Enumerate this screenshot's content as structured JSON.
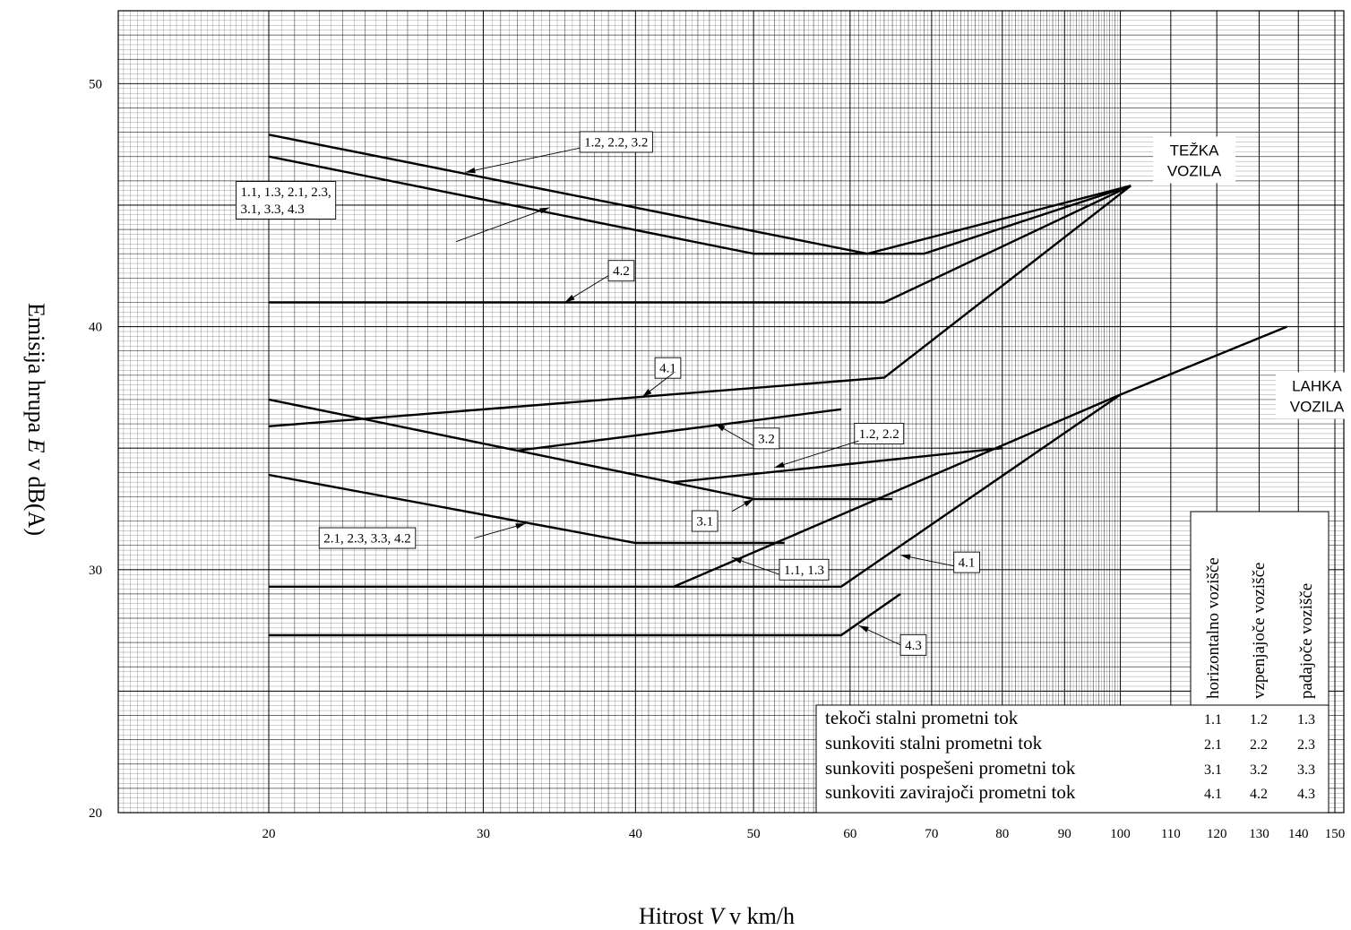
{
  "chart_data": {
    "type": "line",
    "xlabel_prefix": "Hitrost ",
    "xlabel_var": "V",
    "xlabel_suffix": " v km/h",
    "ylabel_prefix": "Emisija hrupa ",
    "ylabel_var": "E",
    "ylabel_suffix": " v dB(A)",
    "x_scale": "log",
    "xlim": [
      14,
      150
    ],
    "ylim": [
      20,
      53
    ],
    "x_ticks": [
      20,
      30,
      40,
      50,
      60,
      70,
      80,
      90,
      100,
      110,
      120,
      130,
      140,
      150
    ],
    "x_tick_labels": [
      "20",
      "30",
      "40",
      "50",
      "60",
      "70",
      "80",
      "90",
      "100",
      "110",
      "120",
      "130",
      "140",
      "150"
    ],
    "y_ticks": [
      20,
      30,
      40,
      50
    ],
    "y_tick_labels": [
      "20",
      "30",
      "40",
      "50"
    ],
    "grid": true,
    "regions": [
      {
        "line1": "TEŽKA",
        "line2": "VOZILA",
        "x": 115,
        "y": 46.9
      },
      {
        "line1": "LAHKA",
        "line2": "VOZILA",
        "x": 145,
        "y": 37.2
      }
    ],
    "series": [
      {
        "group": "heavy",
        "points": [
          [
            20,
            47.9
          ],
          [
            62,
            43.0
          ],
          [
            69,
            43.0
          ],
          [
            102,
            45.8
          ]
        ]
      },
      {
        "group": "heavy",
        "points": [
          [
            20,
            47.0
          ],
          [
            50,
            43.0
          ],
          [
            62,
            43.0
          ],
          [
            102,
            45.8
          ]
        ]
      },
      {
        "group": "heavy",
        "points": [
          [
            20,
            41.0
          ],
          [
            64,
            41.0
          ],
          [
            102,
            45.8
          ]
        ]
      },
      {
        "group": "heavy",
        "points": [
          [
            20,
            35.9
          ],
          [
            64,
            37.9
          ],
          [
            102,
            45.8
          ]
        ]
      },
      {
        "group": "heavy",
        "points": [
          [
            32,
            34.9
          ],
          [
            59,
            36.6
          ]
        ]
      },
      {
        "group": "light",
        "points": [
          [
            20,
            37.0
          ],
          [
            50,
            32.9
          ],
          [
            65,
            32.9
          ]
        ]
      },
      {
        "group": "light",
        "points": [
          [
            43,
            33.6
          ],
          [
            80,
            35.0
          ]
        ]
      },
      {
        "group": "light",
        "points": [
          [
            20,
            33.9
          ],
          [
            40,
            31.1
          ],
          [
            53,
            31.1
          ]
        ]
      },
      {
        "group": "light",
        "points": [
          [
            43,
            29.3
          ],
          [
            100,
            37.2
          ],
          [
            137,
            40.0
          ]
        ]
      },
      {
        "group": "light",
        "points": [
          [
            20,
            29.3
          ],
          [
            59,
            29.3
          ],
          [
            100,
            37.2
          ]
        ]
      },
      {
        "group": "light",
        "points": [
          [
            20,
            27.3
          ],
          [
            59,
            27.3
          ],
          [
            66,
            29.0
          ]
        ]
      }
    ],
    "annotations": [
      {
        "lines": [
          "1.2, 2.2, 3.2"
        ],
        "box": [
          36,
          47.6
        ],
        "anchor": "lm",
        "arrow_from": [
          36,
          47.35
        ],
        "arrow_to": [
          29,
          46.35
        ]
      },
      {
        "lines": [
          "1.1, 1.3, 2.1, 2.3,",
          "3.1, 3.3, 4.3"
        ],
        "box": [
          18.8,
          45.2
        ],
        "anchor": "lm",
        "arrow_from": [
          28.5,
          43.5
        ],
        "arrow_to": [
          34,
          44.9
        ]
      },
      {
        "lines": [
          "4.2"
        ],
        "box": [
          38,
          42.3
        ],
        "anchor": "lm",
        "arrow_from": [
          38,
          42.1
        ],
        "arrow_to": [
          35,
          41.0
        ]
      },
      {
        "lines": [
          "4.1"
        ],
        "box": [
          41.5,
          38.3
        ],
        "anchor": "lm",
        "arrow_from": [
          43,
          38.1
        ],
        "arrow_to": [
          40.5,
          37.1
        ]
      },
      {
        "lines": [
          "3.2"
        ],
        "box": [
          50,
          35.4
        ],
        "anchor": "lm",
        "arrow_from": [
          50,
          35.1
        ],
        "arrow_to": [
          46.5,
          36.0
        ]
      },
      {
        "lines": [
          "1.2, 2.2"
        ],
        "box": [
          60.5,
          35.6
        ],
        "anchor": "lm",
        "arrow_from": [
          61,
          35.3
        ],
        "arrow_to": [
          52,
          34.2
        ]
      },
      {
        "lines": [
          "3.1"
        ],
        "box": [
          44.5,
          32.0
        ],
        "anchor": "lm",
        "arrow_from": [
          48,
          32.4
        ],
        "arrow_to": [
          50,
          32.9
        ]
      },
      {
        "lines": [
          "2.1, 2.3, 3.3, 4.2"
        ],
        "box": [
          22,
          31.3
        ],
        "anchor": "lm",
        "arrow_from": [
          29.5,
          31.3
        ],
        "arrow_to": [
          32.5,
          31.9
        ]
      },
      {
        "lines": [
          "1.1, 1.3"
        ],
        "box": [
          52.5,
          30.0
        ],
        "anchor": "lm",
        "arrow_from": [
          52.5,
          29.8
        ],
        "arrow_to": [
          48,
          30.5
        ]
      },
      {
        "lines": [
          "4.1"
        ],
        "box": [
          73,
          30.3
        ],
        "anchor": "lm",
        "arrow_from": [
          73,
          30.15
        ],
        "arrow_to": [
          66,
          30.6
        ]
      },
      {
        "lines": [
          "4.3"
        ],
        "box": [
          66,
          26.9
        ],
        "anchor": "lm",
        "arrow_from": [
          66,
          26.9
        ],
        "arrow_to": [
          61,
          27.7
        ]
      }
    ]
  },
  "legend": {
    "column_headers": [
      "horizontalno vozišče",
      "vzpenjajoče vozišče",
      "padajoče vozišče"
    ],
    "rows": [
      {
        "label": "tekoči stalni prometni tok",
        "codes": [
          "1.1",
          "1.2",
          "1.3"
        ]
      },
      {
        "label": "sunkoviti stalni prometni tok",
        "codes": [
          "2.1",
          "2.2",
          "2.3"
        ]
      },
      {
        "label": "sunkoviti pospešeni prometni tok",
        "codes": [
          "3.1",
          "3.2",
          "3.3"
        ]
      },
      {
        "label": "sunkoviti zavirajoči prometni tok",
        "codes": [
          "4.1",
          "4.2",
          "4.3"
        ]
      }
    ]
  }
}
